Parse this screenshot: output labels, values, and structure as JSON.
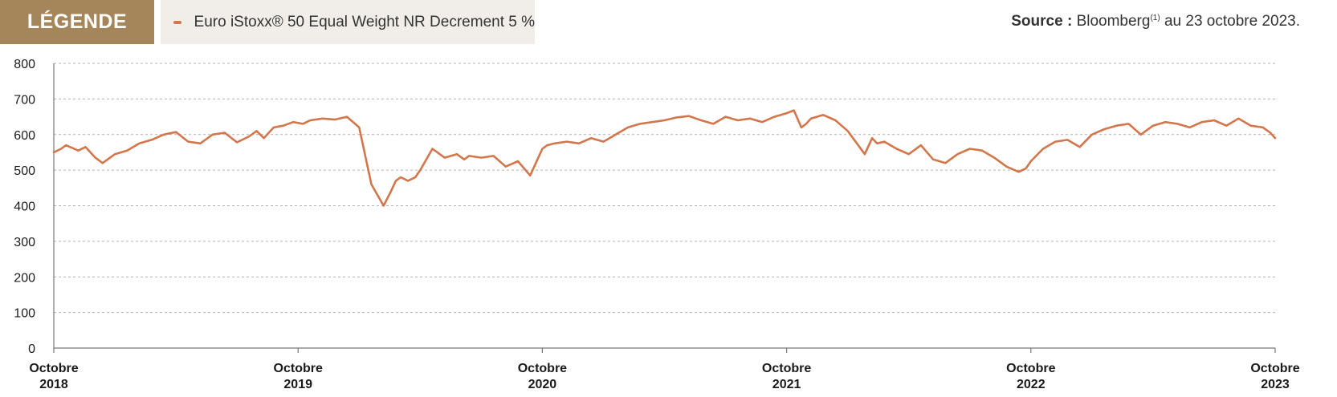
{
  "legend": {
    "tag_label": "LÉGENDE",
    "series_label": "Euro iStoxx® 50 Equal Weight NR Decrement 5 %"
  },
  "source": {
    "label": "Source :",
    "text_before": "Bloomberg",
    "superscript": "(1)",
    "text_after": " au 23 octobre 2023."
  },
  "colors": {
    "series": "#d3764b",
    "legend_tag_bg": "#a5865a",
    "legend_box_bg": "#f1ede8",
    "grid": "#b0b0b0",
    "axis": "#777777"
  },
  "chart_data": {
    "type": "line",
    "title": "",
    "xlabel": "",
    "ylabel": "",
    "ylim": [
      0,
      800
    ],
    "yticks": [
      0,
      100,
      200,
      300,
      400,
      500,
      600,
      700,
      800
    ],
    "xticks": [
      {
        "x": 2018.8,
        "line1": "Octobre",
        "line2": "2018"
      },
      {
        "x": 2019.8,
        "line1": "Octobre",
        "line2": "2019"
      },
      {
        "x": 2020.8,
        "line1": "Octobre",
        "line2": "2020"
      },
      {
        "x": 2021.8,
        "line1": "Octobre",
        "line2": "2021"
      },
      {
        "x": 2022.8,
        "line1": "Octobre",
        "line2": "2022"
      },
      {
        "x": 2023.8,
        "line1": "Octobre",
        "line2": "2023"
      }
    ],
    "xlim": [
      2018.8,
      2023.8
    ],
    "grid": true,
    "legend_position": "top-left",
    "series": [
      {
        "name": "Euro iStoxx® 50 Equal Weight NR Decrement 5 %",
        "x": [
          2018.8,
          2018.83,
          2018.85,
          2018.9,
          2018.93,
          2018.97,
          2019.0,
          2019.05,
          2019.1,
          2019.15,
          2019.2,
          2019.25,
          2019.3,
          2019.35,
          2019.4,
          2019.45,
          2019.5,
          2019.55,
          2019.6,
          2019.63,
          2019.66,
          2019.7,
          2019.74,
          2019.78,
          2019.82,
          2019.85,
          2019.9,
          2019.95,
          2020.0,
          2020.05,
          2020.1,
          2020.15,
          2020.18,
          2020.2,
          2020.22,
          2020.25,
          2020.28,
          2020.3,
          2020.35,
          2020.4,
          2020.45,
          2020.48,
          2020.5,
          2020.55,
          2020.6,
          2020.65,
          2020.7,
          2020.75,
          2020.8,
          2020.82,
          2020.85,
          2020.9,
          2020.95,
          2021.0,
          2021.05,
          2021.1,
          2021.15,
          2021.2,
          2021.25,
          2021.3,
          2021.35,
          2021.4,
          2021.45,
          2021.5,
          2021.55,
          2021.6,
          2021.65,
          2021.7,
          2021.75,
          2021.8,
          2021.83,
          2021.86,
          2021.88,
          2021.9,
          2021.95,
          2022.0,
          2022.05,
          2022.12,
          2022.15,
          2022.17,
          2022.2,
          2022.25,
          2022.3,
          2022.35,
          2022.4,
          2022.45,
          2022.5,
          2022.55,
          2022.6,
          2022.65,
          2022.7,
          2022.75,
          2022.78,
          2022.8,
          2022.85,
          2022.9,
          2022.95,
          2023.0,
          2023.05,
          2023.1,
          2023.15,
          2023.2,
          2023.25,
          2023.3,
          2023.35,
          2023.4,
          2023.45,
          2023.5,
          2023.55,
          2023.6,
          2023.65,
          2023.7,
          2023.75,
          2023.78,
          2023.8
        ],
        "values": [
          550,
          560,
          570,
          555,
          565,
          535,
          520,
          545,
          555,
          575,
          585,
          600,
          607,
          580,
          575,
          600,
          605,
          578,
          595,
          610,
          590,
          620,
          625,
          635,
          630,
          640,
          645,
          642,
          650,
          620,
          460,
          400,
          440,
          470,
          480,
          470,
          480,
          500,
          560,
          535,
          545,
          530,
          540,
          535,
          540,
          510,
          525,
          485,
          560,
          570,
          575,
          580,
          575,
          590,
          580,
          600,
          620,
          630,
          635,
          640,
          648,
          652,
          640,
          630,
          650,
          640,
          645,
          635,
          650,
          660,
          668,
          620,
          630,
          645,
          655,
          640,
          610,
          545,
          590,
          575,
          580,
          560,
          545,
          570,
          530,
          520,
          545,
          560,
          555,
          535,
          510,
          495,
          505,
          525,
          560,
          580,
          585,
          565,
          600,
          615,
          625,
          630,
          600,
          625,
          635,
          630,
          620,
          635,
          640,
          625,
          645,
          625,
          620,
          605,
          590
        ]
      }
    ]
  }
}
